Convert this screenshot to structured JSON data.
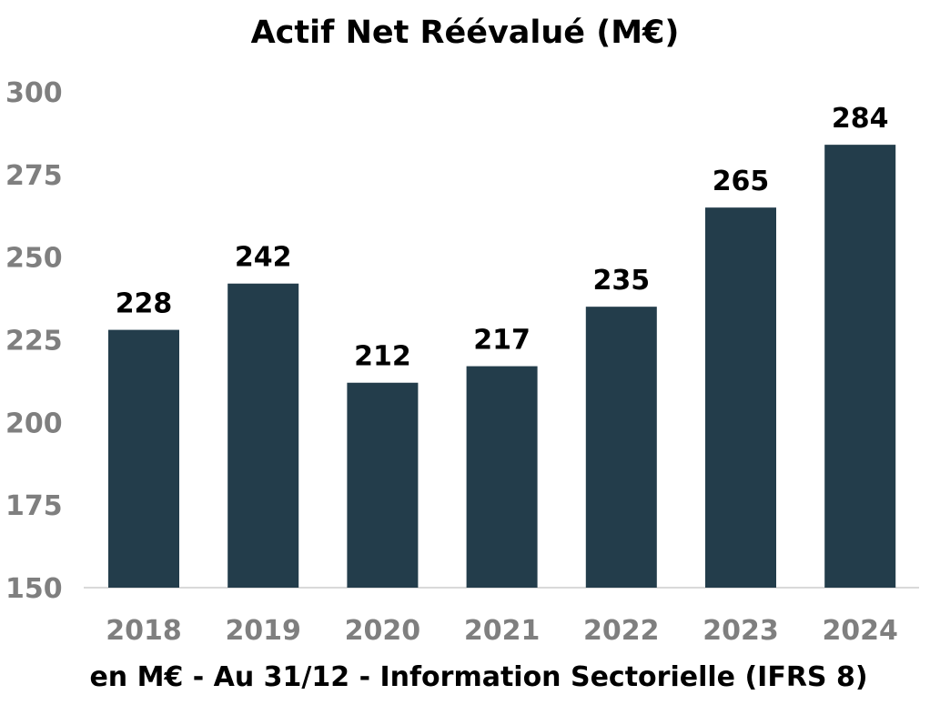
{
  "chart_data": {
    "type": "bar",
    "title": "Actif Net Réévalué (M€)",
    "categories": [
      "2018",
      "2019",
      "2020",
      "2021",
      "2022",
      "2023",
      "2024"
    ],
    "values": [
      228,
      242,
      212,
      217,
      235,
      265,
      284
    ],
    "data_labels": [
      "228",
      "242",
      "212",
      "217",
      "235",
      "265",
      "284"
    ],
    "ylim": [
      150,
      300
    ],
    "yticks": [
      150,
      175,
      200,
      225,
      250,
      275,
      300
    ],
    "xlabel": "",
    "ylabel": "",
    "grid": false,
    "legend": "none",
    "footnote": "en M€ - Au 31/12 - Information Sectorielle (IFRS 8)",
    "colors": {
      "bar": "#233d4b",
      "tick_label": "#7f7f7f",
      "data_label": "#000000",
      "axis_line": "#d9d9d9"
    }
  }
}
